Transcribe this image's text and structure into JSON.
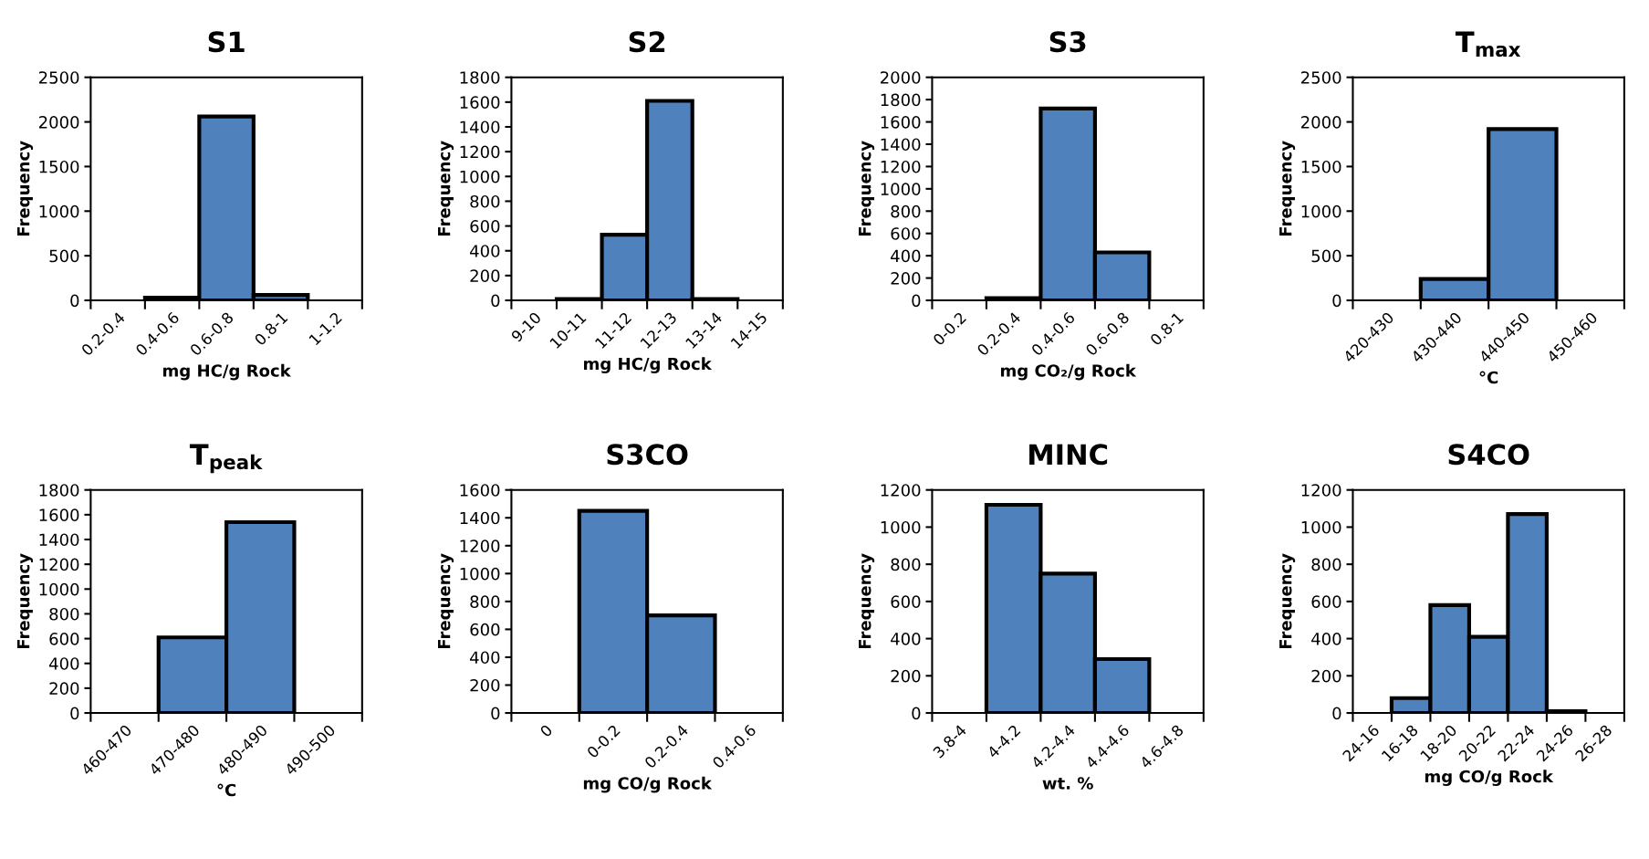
{
  "chart_data": [
    {
      "type": "bar",
      "title": "S1",
      "xlabel": "mg HC/g Rock",
      "ylabel": "Frequency",
      "categories": [
        "0.2-0.4",
        "0.4-0.6",
        "0.6-0.8",
        "0.8-1",
        "1-1.2"
      ],
      "values": [
        0,
        30,
        2060,
        60,
        0
      ],
      "color": "#4f81bd",
      "ylim": [
        0,
        2500
      ],
      "yticks": [
        0,
        500,
        1000,
        1500,
        2000,
        2500
      ],
      "grid": false,
      "legend": false
    },
    {
      "type": "bar",
      "title": "S2",
      "xlabel": "mg HC/g Rock",
      "ylabel": "Frequency",
      "categories": [
        "9-10",
        "10-11",
        "11-12",
        "12-13",
        "13-14",
        "14-15"
      ],
      "values": [
        0,
        10,
        530,
        1610,
        10,
        0
      ],
      "color": "#4f81bd",
      "ylim": [
        0,
        1800
      ],
      "yticks": [
        0,
        200,
        400,
        600,
        800,
        1000,
        1200,
        1400,
        1600,
        1800
      ],
      "grid": false,
      "legend": false
    },
    {
      "type": "bar",
      "title": "S3",
      "xlabel": "mg CO₂/g Rock",
      "ylabel": "Frequency",
      "categories": [
        "0-0.2",
        "0.2-0.4",
        "0.4-0.6",
        "0.6-0.8",
        "0.8-1"
      ],
      "values": [
        0,
        20,
        1720,
        430,
        0
      ],
      "color": "#4f81bd",
      "ylim": [
        0,
        2000
      ],
      "yticks": [
        0,
        200,
        400,
        600,
        800,
        1000,
        1200,
        1400,
        1600,
        1800,
        2000
      ],
      "grid": false,
      "legend": false
    },
    {
      "type": "bar",
      "title": "T$_{max}$",
      "xlabel": "°C",
      "ylabel": "Frequency",
      "categories": [
        "420-430",
        "430-440",
        "440-450",
        "450-460"
      ],
      "values": [
        0,
        240,
        1920,
        0
      ],
      "color": "#4f81bd",
      "ylim": [
        0,
        2500
      ],
      "yticks": [
        0,
        500,
        1000,
        1500,
        2000,
        2500
      ],
      "grid": false,
      "legend": false
    },
    {
      "type": "bar",
      "title": "T$_{peak}$",
      "xlabel": "°C",
      "ylabel": "Frequency",
      "categories": [
        "460-470",
        "470-480",
        "480-490",
        "490-500"
      ],
      "values": [
        0,
        610,
        1540,
        0
      ],
      "color": "#4f81bd",
      "ylim": [
        0,
        1800
      ],
      "yticks": [
        0,
        200,
        400,
        600,
        800,
        1000,
        1200,
        1400,
        1600,
        1800
      ],
      "grid": false,
      "legend": false
    },
    {
      "type": "bar",
      "title": "S3CO",
      "xlabel": "mg CO/g Rock",
      "ylabel": "Frequency",
      "categories": [
        "0",
        "0-0.2",
        "0.2-0.4",
        "0.4-0.6"
      ],
      "values": [
        0,
        1450,
        700,
        0
      ],
      "color": "#4f81bd",
      "ylim": [
        0,
        1600
      ],
      "yticks": [
        0,
        200,
        400,
        600,
        800,
        1000,
        1200,
        1400,
        1600
      ],
      "grid": false,
      "legend": false
    },
    {
      "type": "bar",
      "title": "MINC",
      "xlabel": "wt. %",
      "ylabel": "Frequency",
      "categories": [
        "3.8-4",
        "4-4.2",
        "4.2-4.4",
        "4.4-4.6",
        "4.6-4.8"
      ],
      "values": [
        0,
        1120,
        750,
        290,
        0
      ],
      "color": "#4f81bd",
      "ylim": [
        0,
        1200
      ],
      "yticks": [
        0,
        200,
        400,
        600,
        800,
        1000,
        1200
      ],
      "grid": false,
      "legend": false
    },
    {
      "type": "bar",
      "title": "S4CO",
      "xlabel": "mg CO/g Rock",
      "ylabel": "Frequency",
      "categories": [
        "24-16",
        "16-18",
        "18-20",
        "20-22",
        "22-24",
        "24-26",
        "26-28"
      ],
      "values": [
        0,
        80,
        580,
        410,
        1070,
        10,
        0
      ],
      "color": "#4f81bd",
      "ylim": [
        0,
        1200
      ],
      "yticks": [
        0,
        200,
        400,
        600,
        800,
        1000,
        1200
      ],
      "grid": false,
      "legend": false
    }
  ]
}
